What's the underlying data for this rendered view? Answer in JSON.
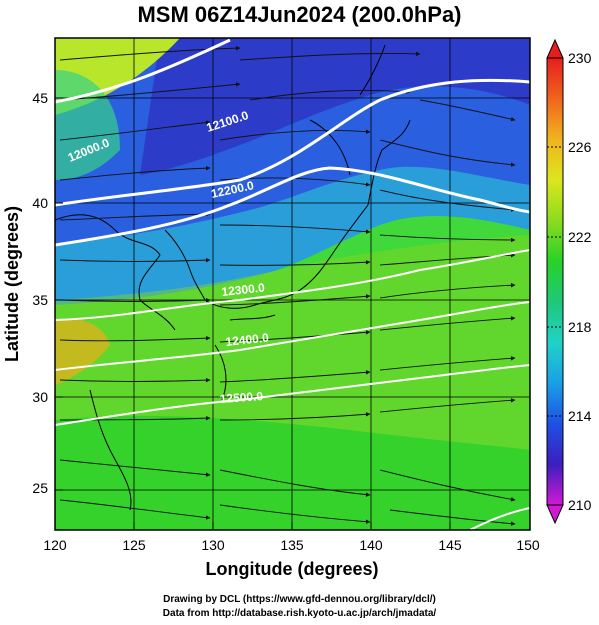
{
  "title": "MSM 06Z14Jun2024 (200.0hPa)",
  "map": {
    "xlabel": "Longitude (degrees)",
    "ylabel": "Latitude  (degrees)",
    "x_ticks": [
      "120",
      "125",
      "130",
      "135",
      "140",
      "145",
      "150"
    ],
    "y_ticks": [
      "25",
      "30",
      "35",
      "40",
      "45"
    ],
    "lon_range": [
      120,
      150
    ],
    "lat_range": [
      22.4,
      47.6
    ],
    "contour_labels": [
      "12000.0",
      "12100.0",
      "12200.0",
      "12300.0",
      "12400.0",
      "12500.0"
    ]
  },
  "colorbar": {
    "ticks": [
      "230",
      "226",
      "222",
      "218",
      "214",
      "210"
    ],
    "range": [
      210,
      230
    ],
    "colors": [
      "#d21ad2",
      "#3c1ebe",
      "#1e50e6",
      "#1aa0e6",
      "#20d2c8",
      "#1ec878",
      "#28d228",
      "#8cdc1e",
      "#dce61e",
      "#f0b41e",
      "#f0641e",
      "#e61e1e"
    ]
  },
  "credits": {
    "line1": "Drawing by DCL (https://www.gfd-dennou.org/library/dcl/)",
    "line2": "Data from http://database.rish.kyoto-u.ac.jp/arch/jmadata/"
  }
}
